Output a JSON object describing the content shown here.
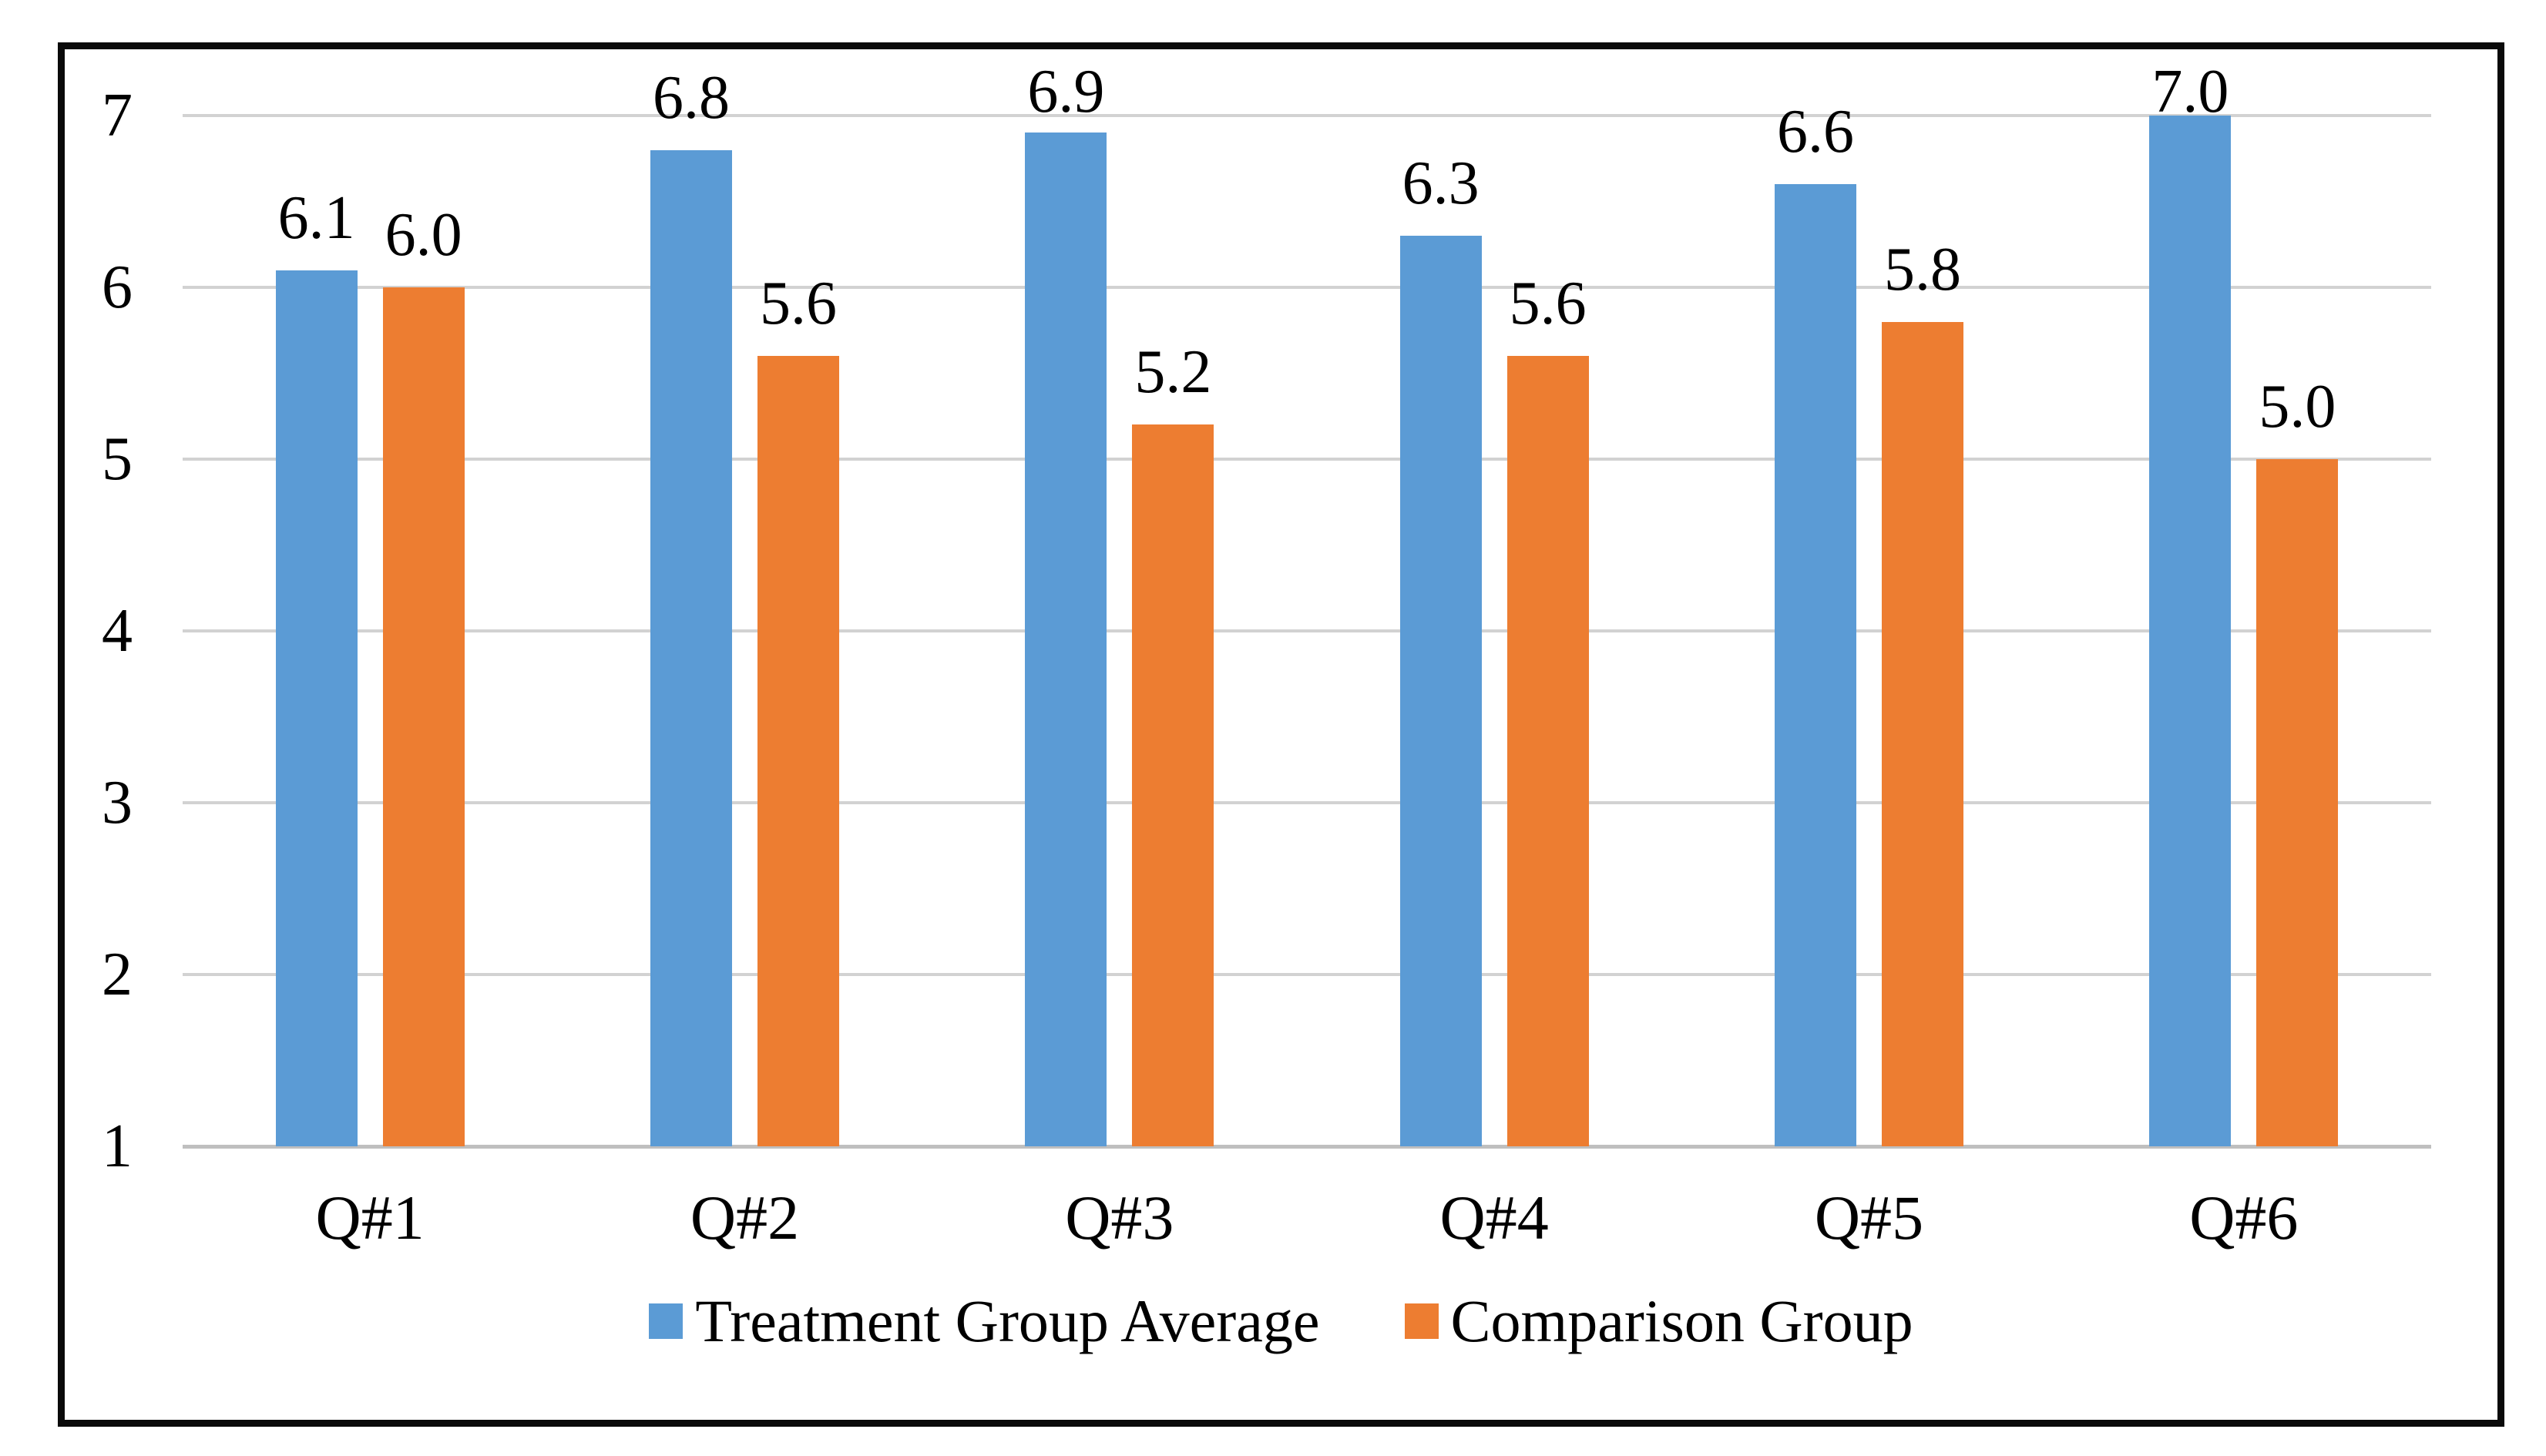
{
  "chart_data": {
    "type": "bar",
    "title": "",
    "xlabel": "",
    "ylabel": "",
    "categories": [
      "Q#1",
      "Q#2",
      "Q#3",
      "Q#4",
      "Q#5",
      "Q#6"
    ],
    "series": [
      {
        "name": "Treatment Group Average",
        "color": "#5B9BD5",
        "values": [
          6.1,
          6.8,
          6.9,
          6.3,
          6.6,
          7.0
        ]
      },
      {
        "name": "Comparison Group",
        "color": "#ED7D31",
        "values": [
          6.0,
          5.6,
          5.2,
          5.6,
          5.8,
          5.0
        ]
      }
    ],
    "data_labels": [
      [
        "6.1",
        "6.8",
        "6.9",
        "6.3",
        "6.6",
        "7.0"
      ],
      [
        "6.0",
        "5.6",
        "5.2",
        "5.6",
        "5.8",
        "5.0"
      ]
    ],
    "ylim": [
      1,
      7
    ],
    "y_ticks": [
      "7",
      "6",
      "5",
      "4",
      "3",
      "2",
      "1"
    ],
    "baseline_value": 1,
    "grid": true,
    "legend_position": "bottom-center"
  },
  "colors": {
    "background": "#ffffff",
    "frame_border": "#0a0a0a",
    "gridline": "#d2d2d2",
    "baseline": "#bfbfbf",
    "text": "#000000",
    "series_blue": "#5B9BD5",
    "series_orange": "#ED7D31"
  }
}
